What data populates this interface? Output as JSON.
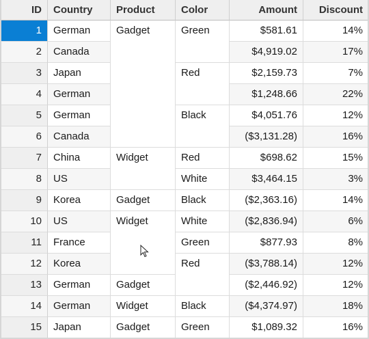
{
  "columns": [
    "ID",
    "Country",
    "Product",
    "Color",
    "Amount",
    "Discount"
  ],
  "rows": [
    {
      "id": "1",
      "country": "German",
      "product": "Gadget",
      "color": "Green",
      "amount": "$581.61",
      "discount": "14%"
    },
    {
      "id": "2",
      "country": "Canada",
      "product": "Gadget",
      "color": "Green",
      "amount": "$4,919.02",
      "discount": "17%"
    },
    {
      "id": "3",
      "country": "Japan",
      "product": "Gadget",
      "color": "Red",
      "amount": "$2,159.73",
      "discount": "7%"
    },
    {
      "id": "4",
      "country": "German",
      "product": "Gadget",
      "color": "Red",
      "amount": "$1,248.66",
      "discount": "22%"
    },
    {
      "id": "5",
      "country": "German",
      "product": "Gadget",
      "color": "Black",
      "amount": "$4,051.76",
      "discount": "12%"
    },
    {
      "id": "6",
      "country": "Canada",
      "product": "Gadget",
      "color": "Black",
      "amount": "($3,131.28)",
      "discount": "16%"
    },
    {
      "id": "7",
      "country": "China",
      "product": "Widget",
      "color": "Red",
      "amount": "$698.62",
      "discount": "15%"
    },
    {
      "id": "8",
      "country": "US",
      "product": "Widget",
      "color": "White",
      "amount": "$3,464.15",
      "discount": "3%"
    },
    {
      "id": "9",
      "country": "Korea",
      "product": "Gadget",
      "color": "Black",
      "amount": "($2,363.16)",
      "discount": "14%"
    },
    {
      "id": "10",
      "country": "US",
      "product": "Widget",
      "color": "White",
      "amount": "($2,836.94)",
      "discount": "6%"
    },
    {
      "id": "11",
      "country": "France",
      "product": "Widget",
      "color": "Green",
      "amount": "$877.93",
      "discount": "8%"
    },
    {
      "id": "12",
      "country": "Korea",
      "product": "Widget",
      "color": "Red",
      "amount": "($3,788.14)",
      "discount": "12%"
    },
    {
      "id": "13",
      "country": "German",
      "product": "Gadget",
      "color": "Red",
      "amount": "($2,446.92)",
      "discount": "12%"
    },
    {
      "id": "14",
      "country": "German",
      "product": "Widget",
      "color": "Black",
      "amount": "($4,374.97)",
      "discount": "18%"
    },
    {
      "id": "15",
      "country": "Japan",
      "product": "Gadget",
      "color": "Green",
      "amount": "$1,089.32",
      "discount": "16%"
    }
  ],
  "selected_row_id": "1",
  "colors": {
    "selection": "#0a7fd4",
    "header_bg": "#efefef",
    "alt_row_bg": "#f6f6f6"
  },
  "cursor_icon": "mouse-pointer-icon"
}
